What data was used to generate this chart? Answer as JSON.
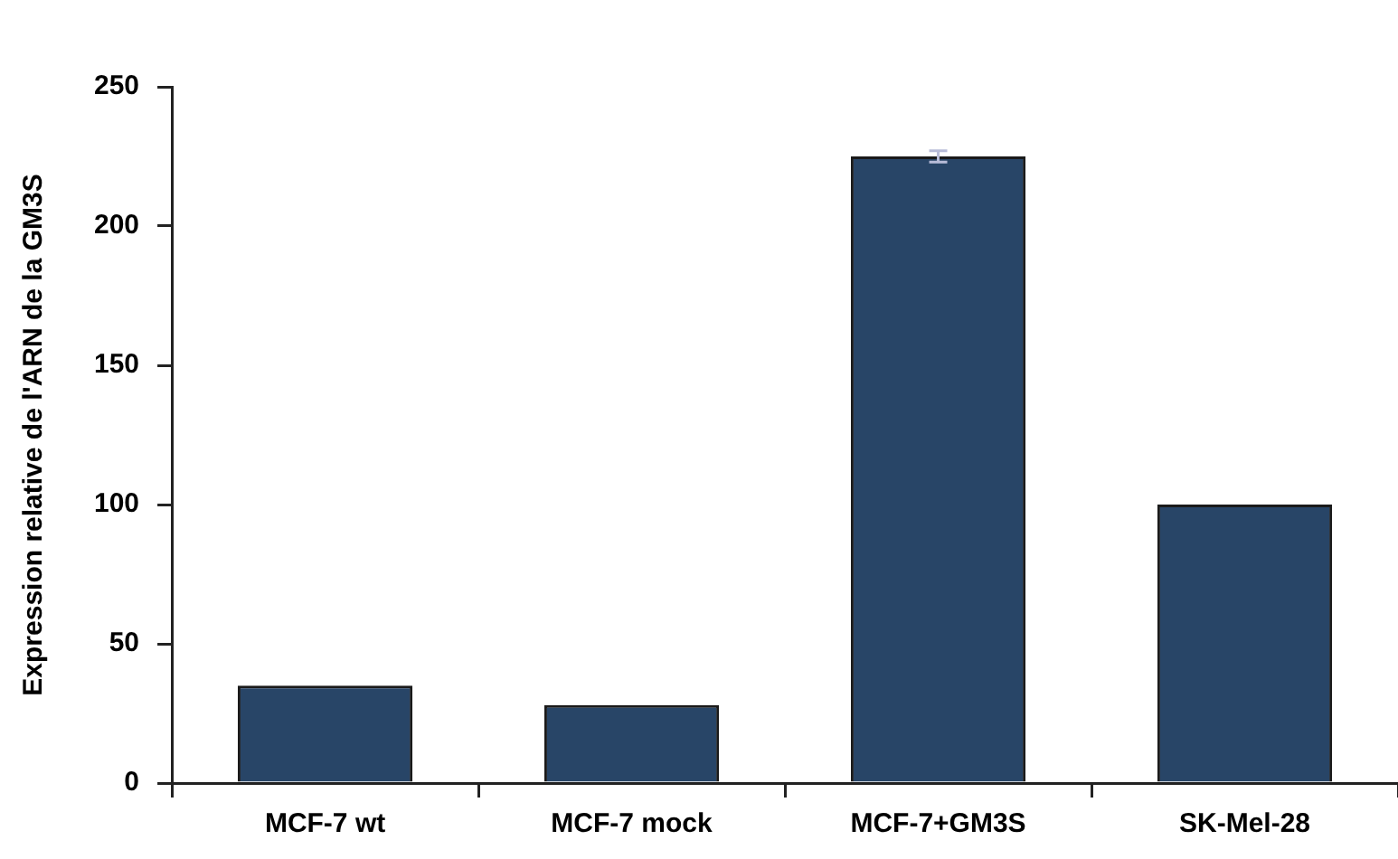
{
  "chart_data": {
    "type": "bar",
    "ylabel": "Expression relative de l'ARN de la GM3S",
    "categories": [
      "MCF-7 wt",
      "MCF-7 mock",
      "MCF-7+GM3S",
      "SK-Mel-28"
    ],
    "values": [
      35,
      28,
      225,
      100
    ],
    "errors": [
      null,
      null,
      2,
      null
    ],
    "color": "#284567",
    "ylim": [
      0,
      250
    ],
    "yticks": [
      0,
      50,
      100,
      150,
      200,
      250
    ],
    "grid": false,
    "legend": false
  }
}
